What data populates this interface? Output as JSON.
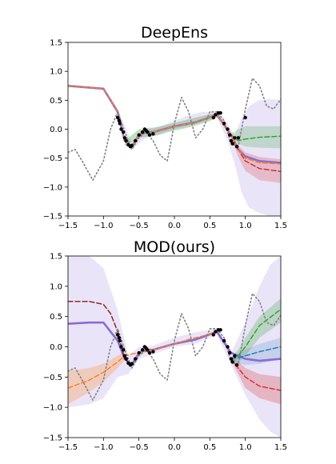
{
  "chart_data": [
    {
      "type": "line",
      "title": "DeepEns",
      "xlim": [
        -1.5,
        1.5
      ],
      "ylim": [
        -1.5,
        1.5
      ],
      "x_ticks": [
        "−1.5",
        "−1.0",
        "−0.5",
        "0.0",
        "0.5",
        "1.0",
        "1.5"
      ],
      "y_ticks": [
        "−1.5",
        "−1.0",
        "−0.5",
        "0.0",
        "0.5",
        "1.0",
        "1.5"
      ],
      "grid": false,
      "legend": "none",
      "colors": {
        "purple": "#8a6bd6",
        "green": "#2ca02c",
        "red": "#d62728",
        "orange": "#ff7f0e",
        "truth": "#808080",
        "points": "#000000"
      },
      "series": [
        {
          "color": "purple",
          "style": "solid",
          "x": [
            -1.5,
            -1.0,
            -0.8,
            -0.7,
            -0.6,
            -0.5,
            -0.4,
            -0.3,
            0.0,
            0.3,
            0.6,
            0.8,
            0.9,
            1.0,
            1.2,
            1.5
          ],
          "y": [
            0.75,
            0.7,
            0.3,
            -0.2,
            -0.3,
            -0.1,
            -0.05,
            -0.05,
            0.05,
            0.12,
            0.25,
            -0.1,
            -0.35,
            -0.47,
            -0.55,
            -0.58
          ]
        },
        {
          "color": "green",
          "style": "dashed",
          "x": [
            0.8,
            0.9,
            1.0,
            1.2,
            1.5
          ],
          "y": [
            -0.1,
            -0.2,
            -0.17,
            -0.14,
            -0.12
          ]
        },
        {
          "color": "red",
          "style": "dashed",
          "x": [
            0.8,
            0.9,
            1.0,
            1.2,
            1.5
          ],
          "y": [
            -0.1,
            -0.35,
            -0.55,
            -0.68,
            -0.73
          ]
        },
        {
          "color": "orange",
          "style": "dashed",
          "x": [
            -1.5,
            -1.0,
            -0.8,
            -0.7,
            -0.6,
            -0.5,
            -0.4,
            -0.3,
            0.0,
            0.3,
            0.6,
            0.8,
            0.9,
            1.0,
            1.2,
            1.5
          ],
          "y": [
            0.75,
            0.7,
            0.3,
            -0.2,
            -0.3,
            -0.1,
            -0.05,
            -0.05,
            0.05,
            0.12,
            0.25,
            -0.1,
            -0.35,
            -0.5,
            -0.58,
            -0.6
          ]
        },
        {
          "color": "truth",
          "style": "dotted",
          "x": [
            -1.5,
            -1.4,
            -1.3,
            -1.15,
            -1.0,
            -0.9,
            -0.8,
            -0.7,
            -0.6,
            -0.5,
            -0.4,
            -0.3,
            -0.2,
            -0.1,
            0.0,
            0.1,
            0.2,
            0.3,
            0.4,
            0.5,
            0.6,
            0.7,
            0.8,
            0.9,
            1.0,
            1.1,
            1.2,
            1.3,
            1.4,
            1.5
          ],
          "y": [
            -0.4,
            -0.35,
            -0.55,
            -0.88,
            -0.55,
            0.0,
            0.3,
            -0.05,
            -0.35,
            -0.15,
            -0.05,
            -0.2,
            -0.45,
            -0.55,
            0.1,
            0.55,
            0.3,
            -0.15,
            0.0,
            0.3,
            0.3,
            0.15,
            -0.25,
            -0.3,
            0.35,
            0.88,
            0.75,
            0.4,
            0.35,
            0.52
          ]
        }
      ],
      "bands": [
        {
          "color": "purple",
          "opacity": 0.18,
          "x": [
            -1.5,
            -1.0,
            -0.8,
            -0.6,
            -0.4,
            -0.2,
            0.0,
            0.2,
            0.4,
            0.6,
            0.75,
            0.85,
            0.95,
            1.05,
            1.2,
            1.35,
            1.5
          ],
          "upper": [
            0.75,
            0.72,
            0.35,
            -0.22,
            0.02,
            0.05,
            0.15,
            0.24,
            0.3,
            0.3,
            0.1,
            -0.1,
            0.2,
            0.4,
            0.5,
            0.52,
            0.5
          ],
          "lower": [
            0.75,
            0.68,
            0.25,
            -0.35,
            -0.15,
            -0.1,
            0.0,
            0.05,
            0.12,
            0.2,
            -0.2,
            -0.6,
            -1.1,
            -1.35,
            -1.45,
            -1.5,
            -1.5
          ]
        },
        {
          "color": "green",
          "opacity": 0.22,
          "x": [
            0.8,
            0.9,
            1.0,
            1.2,
            1.5
          ],
          "upper": [
            -0.08,
            0.0,
            0.05,
            0.05,
            0.05
          ],
          "lower": [
            -0.12,
            -0.25,
            -0.3,
            -0.32,
            -0.33
          ]
        },
        {
          "color": "red",
          "opacity": 0.22,
          "x": [
            0.8,
            0.9,
            1.0,
            1.2,
            1.5
          ],
          "upper": [
            -0.08,
            -0.28,
            -0.4,
            -0.48,
            -0.52
          ],
          "lower": [
            -0.12,
            -0.48,
            -0.72,
            -0.88,
            -0.93
          ]
        },
        {
          "color": "green",
          "opacity": 0.3,
          "x": [
            -0.7,
            -0.5,
            -0.3,
            -0.1,
            0.1,
            0.3,
            0.5,
            0.6
          ],
          "upper": [
            -0.2,
            0.0,
            0.02,
            0.08,
            0.14,
            0.2,
            0.26,
            0.28
          ],
          "lower": [
            -0.3,
            -0.15,
            -0.12,
            -0.05,
            0.0,
            0.06,
            0.14,
            0.2
          ]
        }
      ],
      "points": {
        "x": [
          -0.8,
          -0.78,
          -0.77,
          -0.75,
          -0.72,
          -0.7,
          -0.68,
          -0.65,
          -0.62,
          -0.6,
          -0.55,
          -0.5,
          -0.45,
          -0.42,
          -0.4,
          -0.38,
          -0.35,
          -0.3,
          0.55,
          0.58,
          0.62,
          0.65,
          0.7,
          0.75,
          0.78,
          0.8,
          0.82,
          0.85,
          0.88,
          0.9,
          1.0
        ],
        "y": [
          0.2,
          0.15,
          0.1,
          0.0,
          -0.05,
          -0.15,
          -0.2,
          -0.27,
          -0.3,
          -0.28,
          -0.2,
          -0.1,
          -0.05,
          0.0,
          -0.02,
          -0.05,
          -0.1,
          -0.08,
          0.2,
          0.25,
          0.28,
          0.28,
          0.1,
          0.0,
          -0.1,
          -0.2,
          -0.25,
          -0.15,
          -0.3,
          -0.15,
          0.2
        ]
      }
    },
    {
      "type": "line",
      "title": "MOD(ours)",
      "xlim": [
        -1.5,
        1.5
      ],
      "ylim": [
        -1.5,
        1.5
      ],
      "x_ticks": [
        "−1.5",
        "−1.0",
        "−0.5",
        "0.0",
        "0.5",
        "1.0",
        "1.5"
      ],
      "y_ticks": [
        "−1.5",
        "−1.0",
        "−0.5",
        "0.0",
        "0.5",
        "1.0",
        "1.5"
      ],
      "grid": false,
      "legend": "none",
      "colors": {
        "purple": "#8a6bd6",
        "green": "#2ca02c",
        "red": "#d62728",
        "orange": "#ff7f0e",
        "blue": "#1f77b4",
        "darkred": "#8b1a10",
        "truth": "#808080",
        "points": "#000000"
      },
      "series": [
        {
          "color": "purple",
          "style": "solid",
          "x": [
            -1.5,
            -1.2,
            -1.0,
            -0.8,
            -0.7,
            -0.6,
            -0.5,
            -0.4,
            -0.3,
            0.0,
            0.3,
            0.6,
            0.8,
            0.9,
            1.0,
            1.2,
            1.5
          ],
          "y": [
            0.38,
            0.4,
            0.4,
            0.1,
            -0.2,
            -0.3,
            -0.1,
            -0.05,
            -0.05,
            0.05,
            0.12,
            0.25,
            -0.1,
            -0.15,
            -0.2,
            -0.23,
            -0.2
          ]
        },
        {
          "color": "darkred",
          "style": "dashed",
          "x": [
            -1.5,
            -1.2,
            -1.0,
            -0.9,
            -0.8,
            -0.7,
            -0.6
          ],
          "y": [
            0.75,
            0.75,
            0.7,
            0.55,
            0.25,
            -0.2,
            -0.3
          ]
        },
        {
          "color": "orange",
          "style": "dashed",
          "x": [
            -1.5,
            -1.2,
            -1.0,
            -0.8,
            -0.7,
            -0.6,
            -0.4,
            -0.2,
            0.0,
            0.2,
            0.4,
            0.6
          ],
          "y": [
            -0.68,
            -0.55,
            -0.42,
            -0.25,
            -0.15,
            -0.12,
            -0.08,
            -0.02,
            0.05,
            0.12,
            0.18,
            0.24
          ]
        },
        {
          "color": "green",
          "style": "dashed",
          "x": [
            0.8,
            0.9,
            1.0,
            1.2,
            1.5
          ],
          "y": [
            -0.2,
            -0.15,
            0.0,
            0.35,
            0.62
          ]
        },
        {
          "color": "blue",
          "style": "dashed",
          "x": [
            0.8,
            0.9,
            1.0,
            1.2,
            1.5
          ],
          "y": [
            -0.2,
            -0.18,
            -0.15,
            -0.08,
            0.0
          ]
        },
        {
          "color": "red",
          "style": "dashed",
          "x": [
            0.8,
            0.9,
            1.0,
            1.2,
            1.5
          ],
          "y": [
            -0.2,
            -0.35,
            -0.5,
            -0.65,
            -0.72
          ]
        },
        {
          "color": "truth",
          "style": "dotted",
          "x": [
            -1.5,
            -1.4,
            -1.3,
            -1.15,
            -1.0,
            -0.9,
            -0.8,
            -0.7,
            -0.6,
            -0.5,
            -0.4,
            -0.3,
            -0.2,
            -0.1,
            0.0,
            0.1,
            0.2,
            0.3,
            0.4,
            0.5,
            0.6,
            0.7,
            0.8,
            0.9,
            1.0,
            1.1,
            1.2,
            1.3,
            1.4,
            1.5
          ],
          "y": [
            -0.4,
            -0.35,
            -0.55,
            -0.88,
            -0.55,
            0.0,
            0.3,
            -0.05,
            -0.35,
            -0.15,
            -0.05,
            -0.2,
            -0.45,
            -0.55,
            0.1,
            0.55,
            0.3,
            -0.15,
            0.0,
            0.3,
            0.3,
            0.15,
            -0.25,
            -0.3,
            0.35,
            0.88,
            0.75,
            0.4,
            0.35,
            0.52
          ]
        }
      ],
      "bands": [
        {
          "color": "purple",
          "opacity": 0.18,
          "x": [
            -1.5,
            -1.2,
            -1.0,
            -0.8,
            -0.65,
            -0.5,
            -0.3,
            0.0,
            0.3,
            0.6,
            0.8,
            1.0,
            1.2,
            1.35,
            1.5
          ],
          "upper": [
            1.5,
            1.5,
            1.3,
            0.6,
            -0.15,
            0.0,
            0.02,
            0.15,
            0.24,
            0.3,
            -0.1,
            0.4,
            1.0,
            1.35,
            1.5
          ],
          "lower": [
            -1.0,
            -0.95,
            -0.85,
            -0.5,
            -0.45,
            -0.2,
            -0.12,
            0.0,
            0.05,
            0.2,
            -0.3,
            -0.8,
            -1.2,
            -1.4,
            -1.5
          ]
        },
        {
          "color": "orange",
          "opacity": 0.25,
          "x": [
            -1.5,
            -1.2,
            -1.0,
            -0.8,
            -0.7
          ],
          "upper": [
            -0.4,
            -0.35,
            -0.28,
            -0.15,
            -0.08
          ],
          "lower": [
            -0.95,
            -0.75,
            -0.58,
            -0.35,
            -0.22
          ]
        },
        {
          "color": "green",
          "opacity": 0.25,
          "x": [
            0.8,
            0.9,
            1.0,
            1.2,
            1.5
          ],
          "upper": [
            -0.18,
            -0.05,
            0.15,
            0.5,
            0.8
          ],
          "lower": [
            -0.22,
            -0.25,
            -0.15,
            0.15,
            0.4
          ]
        },
        {
          "color": "blue",
          "opacity": 0.18,
          "x": [
            0.8,
            0.9,
            1.0,
            1.2,
            1.5
          ],
          "upper": [
            -0.18,
            -0.1,
            -0.05,
            0.05,
            0.15
          ],
          "lower": [
            -0.22,
            -0.28,
            -0.3,
            -0.28,
            -0.2
          ]
        },
        {
          "color": "red",
          "opacity": 0.25,
          "x": [
            0.8,
            0.9,
            1.0,
            1.2,
            1.5
          ],
          "upper": [
            -0.18,
            -0.25,
            -0.35,
            -0.45,
            -0.5
          ],
          "lower": [
            -0.22,
            -0.45,
            -0.68,
            -0.85,
            -0.95
          ]
        }
      ],
      "points": {
        "x": [
          -0.8,
          -0.78,
          -0.77,
          -0.75,
          -0.72,
          -0.7,
          -0.68,
          -0.65,
          -0.62,
          -0.6,
          -0.55,
          -0.5,
          -0.45,
          -0.42,
          -0.4,
          -0.38,
          -0.35,
          -0.3,
          0.55,
          0.58,
          0.62,
          0.65,
          0.7,
          0.75,
          0.78,
          0.8,
          0.82,
          0.85,
          0.88
        ],
        "y": [
          0.2,
          0.15,
          0.1,
          0.0,
          -0.05,
          -0.15,
          -0.2,
          -0.27,
          -0.3,
          -0.28,
          -0.2,
          -0.1,
          -0.05,
          0.0,
          -0.02,
          -0.05,
          -0.1,
          -0.08,
          0.2,
          0.25,
          0.28,
          0.28,
          0.1,
          0.0,
          -0.1,
          -0.2,
          -0.25,
          -0.15,
          -0.3
        ]
      }
    }
  ]
}
